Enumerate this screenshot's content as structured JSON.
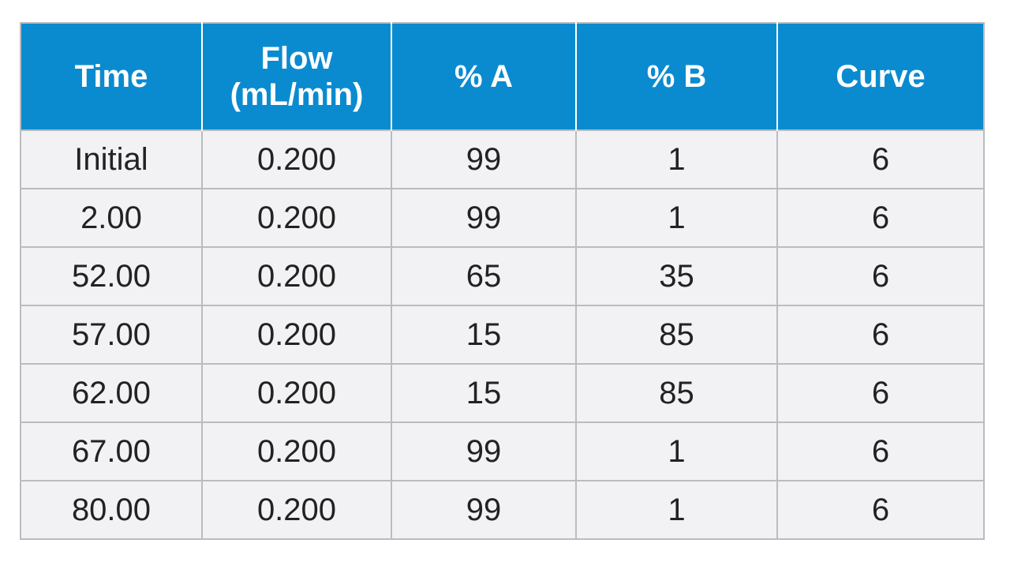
{
  "table": {
    "headers": [
      "Time",
      "Flow\n(mL/min)",
      "% A",
      "% B",
      "Curve"
    ],
    "rows": [
      [
        "Initial",
        "0.200",
        "99",
        "1",
        "6"
      ],
      [
        "2.00",
        "0.200",
        "99",
        "1",
        "6"
      ],
      [
        "52.00",
        "0.200",
        "65",
        "35",
        "6"
      ],
      [
        "57.00",
        "0.200",
        "15",
        "85",
        "6"
      ],
      [
        "62.00",
        "0.200",
        "15",
        "85",
        "6"
      ],
      [
        "67.00",
        "0.200",
        "99",
        "1",
        "6"
      ],
      [
        "80.00",
        "0.200",
        "99",
        "1",
        "6"
      ]
    ]
  },
  "colors": {
    "header_bg": "#0a8bd0",
    "cell_bg": "#f2f2f4",
    "border": "#b9bcc0"
  }
}
